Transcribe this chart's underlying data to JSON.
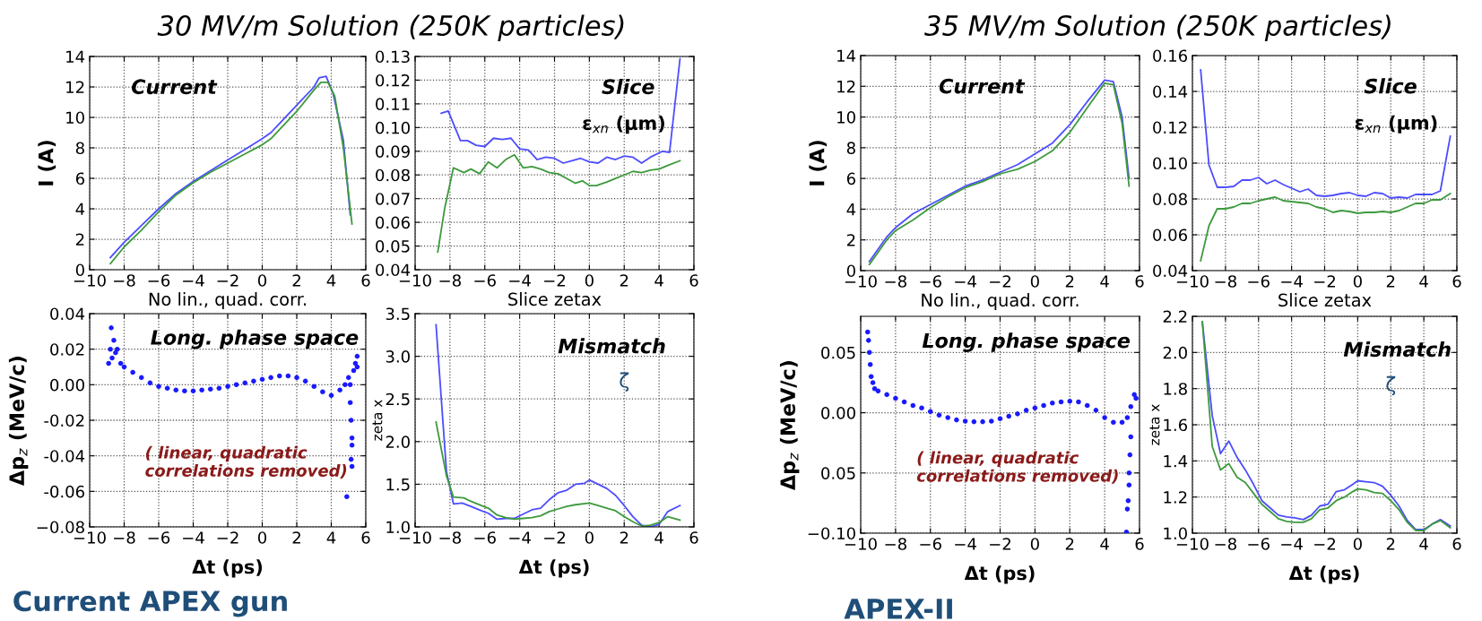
{
  "chart_data": [
    {
      "type": "line",
      "title": "30 MV/m Solution (250K particles)",
      "xlabel": "No lin., quad. corr.",
      "ylabel": "I (A)",
      "annotations": [
        "Current"
      ],
      "xlim": [
        -10,
        6
      ],
      "xticks": [
        {
          "value": -10,
          "label": "−10"
        },
        {
          "value": -8,
          "label": "−8"
        },
        {
          "value": -6,
          "label": "−6"
        },
        {
          "value": -4,
          "label": "−4"
        },
        {
          "value": -2,
          "label": "−2"
        },
        0,
        2,
        4,
        6
      ],
      "ylim": [
        0,
        14
      ],
      "yticks": [
        0,
        2,
        4,
        6,
        8,
        10,
        12,
        14
      ],
      "grid": true,
      "series": [
        {
          "color": "#4d4dff",
          "x": [
            -8.8,
            -8,
            -7,
            -6,
            -5,
            -4,
            -3,
            -2,
            -1,
            0,
            0.5,
            1,
            2,
            3,
            3.3,
            3.7,
            4.1,
            4.7,
            5.1
          ],
          "values": [
            0.8,
            1.8,
            2.9,
            4.0,
            5.0,
            5.8,
            6.5,
            7.2,
            7.9,
            8.6,
            9.0,
            9.6,
            10.8,
            12.0,
            12.6,
            12.7,
            11.6,
            8.5,
            3.6
          ]
        },
        {
          "color": "#3d9a3d",
          "x": [
            -8.8,
            -8,
            -7,
            -6,
            -5,
            -4,
            -3,
            -2,
            -1,
            0,
            0.5,
            1,
            2,
            3,
            3.4,
            3.8,
            4.2,
            4.7,
            5.2
          ],
          "values": [
            0.4,
            1.5,
            2.6,
            3.8,
            4.9,
            5.7,
            6.4,
            7.0,
            7.6,
            8.2,
            8.6,
            9.2,
            10.4,
            11.8,
            12.3,
            12.3,
            11.4,
            8.0,
            3.0
          ]
        }
      ]
    },
    {
      "type": "line",
      "xlabel": "Slice zetax",
      "annotations": [
        "Slice",
        "ε$_{xn}$ (µm)"
      ],
      "xlim": [
        -10,
        6
      ],
      "xticks": [
        {
          "value": -10,
          "label": "−10"
        },
        {
          "value": -8,
          "label": "−8"
        },
        {
          "value": -6,
          "label": "−6"
        },
        {
          "value": -4,
          "label": "−4"
        },
        {
          "value": -2,
          "label": "−2"
        },
        0,
        2,
        4,
        6
      ],
      "ylim": [
        0.04,
        0.13
      ],
      "yticks": [
        0.04,
        0.05,
        0.06,
        0.07,
        {
          "value": 0.08,
          "label": "0.08"
        },
        0.09,
        {
          "value": 0.1,
          "label": "0.10"
        },
        0.11,
        0.12,
        0.13
      ],
      "grid": true,
      "series": [
        {
          "color": "#4d4dff",
          "x": [
            -8.5,
            -8.1,
            -7.4,
            -7,
            -6.5,
            -6,
            -5.5,
            -5,
            -4.5,
            -4,
            -3.5,
            -3,
            -2.5,
            -2,
            -1.5,
            -1,
            -0.5,
            0,
            0.5,
            1,
            1.5,
            2,
            2.5,
            3,
            3.5,
            4.2,
            4.6,
            5.2
          ],
          "values": [
            0.106,
            0.107,
            0.0945,
            0.0945,
            0.0925,
            0.092,
            0.0955,
            0.095,
            0.0955,
            0.091,
            0.0905,
            0.0865,
            0.0875,
            0.087,
            0.085,
            0.086,
            0.087,
            0.0855,
            0.085,
            0.0875,
            0.0865,
            0.088,
            0.0875,
            0.085,
            0.0875,
            0.09,
            0.0895,
            0.129
          ]
        },
        {
          "color": "#3d9a3d",
          "x": [
            -8.7,
            -8.3,
            -7.8,
            -7.2,
            -6.8,
            -6.3,
            -5.8,
            -5.3,
            -4.8,
            -4.3,
            -3.8,
            -3.3,
            -2.8,
            -2.3,
            -1.8,
            -1.3,
            -0.8,
            -0.4,
            0,
            0.4,
            1,
            1.5,
            2,
            2.5,
            3,
            3.5,
            4,
            4.5,
            5.2
          ],
          "values": [
            0.0475,
            0.066,
            0.083,
            0.081,
            0.0825,
            0.0805,
            0.0855,
            0.083,
            0.0865,
            0.0885,
            0.083,
            0.0835,
            0.0825,
            0.081,
            0.0805,
            0.0785,
            0.0765,
            0.0775,
            0.0755,
            0.0755,
            0.077,
            0.0785,
            0.08,
            0.0815,
            0.081,
            0.082,
            0.0825,
            0.084,
            0.086
          ]
        }
      ]
    },
    {
      "type": "scatter",
      "xlabel": "Δt (ps)",
      "ylabel": "Δp$_{z}$ (MeV/c)",
      "annotations": [
        "Long. phase space",
        "( linear, quadratic\ncorrelations removed)",
        "Current APEX gun"
      ],
      "xlim": [
        -10,
        6
      ],
      "xticks": [
        {
          "value": -10,
          "label": "−10"
        },
        {
          "value": -8,
          "label": "−8"
        },
        {
          "value": -6,
          "label": "−6"
        },
        {
          "value": -4,
          "label": "−4"
        },
        {
          "value": -2,
          "label": "−2"
        },
        0,
        2,
        4,
        6
      ],
      "ylim": [
        -0.08,
        0.04
      ],
      "yticks": [
        {
          "value": -0.08,
          "label": "−0.08"
        },
        {
          "value": -0.06,
          "label": "-0.06"
        },
        {
          "value": -0.04,
          "label": "-0.04"
        },
        {
          "value": -0.02,
          "label": "-0.02"
        },
        {
          "value": 0,
          "label": "0.00"
        },
        0.02,
        0.04
      ],
      "grid": true,
      "marker": "circle",
      "series": [
        {
          "color": "#1a1aff",
          "x": [
            -8.9,
            -8.8,
            -8.75,
            -8.7,
            -8.6,
            -8.5,
            -8.4,
            -8.2,
            -8,
            -7.5,
            -7,
            -6.5,
            -6,
            -5.5,
            -5,
            -4.5,
            -4,
            -3.5,
            -3,
            -2.5,
            -2,
            -1.5,
            -1,
            -0.5,
            0,
            0.5,
            1,
            1.5,
            2,
            2.5,
            3,
            3.5,
            4,
            4.5,
            4.8,
            5.0,
            5.1,
            5.15,
            5.2,
            5.2,
            5.15,
            5.2,
            4.9,
            5.3,
            5.4,
            5.5,
            5.5,
            5.1
          ],
          "values": [
            0.012,
            0.02,
            0.032,
            0.015,
            0.025,
            0.018,
            0.02,
            0.012,
            0.01,
            0.007,
            0.004,
            0.001,
            -0.001,
            -0.002,
            -0.003,
            -0.0035,
            -0.0035,
            -0.003,
            -0.0025,
            -0.002,
            -0.001,
            0.0,
            0.001,
            0.002,
            0.003,
            0.004,
            0.005,
            0.005,
            0.004,
            0.002,
            -0.001,
            -0.004,
            -0.006,
            -0.003,
            0.0,
            0.004,
            -0.01,
            -0.02,
            -0.03,
            -0.034,
            -0.042,
            -0.046,
            -0.063,
            0.008,
            0.012,
            0.016,
            0.01,
            0.0
          ]
        }
      ]
    },
    {
      "type": "line",
      "xlabel": "Δt (ps)",
      "ylabel": "zeta x",
      "annotations": [
        "Mismatch",
        "ζ"
      ],
      "xlim": [
        -10,
        6
      ],
      "xticks": [
        {
          "value": -10,
          "label": "−10"
        },
        {
          "value": -8,
          "label": "−8"
        },
        {
          "value": -6,
          "label": "−6"
        },
        {
          "value": -4,
          "label": "−4"
        },
        {
          "value": -2,
          "label": "−2"
        },
        0,
        2,
        4,
        6
      ],
      "ylim": [
        1.0,
        3.5
      ],
      "yticks": [
        {
          "value": 1,
          "label": "1.0"
        },
        1.5,
        {
          "value": 2,
          "label": "2.0"
        },
        2.5,
        {
          "value": 3,
          "label": "3.0"
        },
        3.5
      ],
      "grid": true,
      "series": [
        {
          "color": "#4d4dff",
          "x": [
            -8.8,
            -8.2,
            -7.8,
            -7.3,
            -6.8,
            -6.2,
            -5.8,
            -5.3,
            -4.8,
            -4.3,
            -3.8,
            -3.3,
            -2.8,
            -2.3,
            -1.8,
            -1.3,
            -0.8,
            -0.3,
            0,
            0.5,
            1,
            1.5,
            2,
            2.5,
            3,
            3.5,
            4,
            4.5,
            5.2
          ],
          "values": [
            3.37,
            1.65,
            1.27,
            1.28,
            1.24,
            1.19,
            1.16,
            1.09,
            1.1,
            1.1,
            1.15,
            1.2,
            1.22,
            1.32,
            1.4,
            1.43,
            1.5,
            1.51,
            1.55,
            1.5,
            1.45,
            1.37,
            1.25,
            1.12,
            1.02,
            1.0,
            1.03,
            1.18,
            1.25
          ]
        },
        {
          "color": "#3d9a3d",
          "x": [
            -8.8,
            -8.2,
            -7.8,
            -7.2,
            -6.8,
            -6.2,
            -5.8,
            -5.3,
            -4.8,
            -4.3,
            -3.8,
            -3.3,
            -2.8,
            -2.3,
            -1.8,
            -1.3,
            -0.8,
            0,
            0.5,
            1,
            1.5,
            2,
            2.5,
            3,
            3.5,
            4,
            4.5,
            5.2
          ],
          "values": [
            2.23,
            1.6,
            1.35,
            1.34,
            1.3,
            1.25,
            1.22,
            1.14,
            1.11,
            1.09,
            1.1,
            1.11,
            1.13,
            1.18,
            1.21,
            1.24,
            1.26,
            1.28,
            1.25,
            1.22,
            1.19,
            1.12,
            1.06,
            1.01,
            1.02,
            1.05,
            1.12,
            1.08
          ]
        }
      ]
    },
    {
      "type": "line",
      "title": "35 MV/m Solution (250K particles)",
      "xlabel": "No lin., quad. corr.",
      "ylabel": "I (A)",
      "annotations": [
        "Current"
      ],
      "xlim": [
        -10,
        6
      ],
      "xticks": [
        {
          "value": -10,
          "label": "−10"
        },
        {
          "value": -8,
          "label": "−8"
        },
        {
          "value": -6,
          "label": "−6"
        },
        {
          "value": -4,
          "label": "−4"
        },
        {
          "value": -2,
          "label": "−2"
        },
        0,
        2,
        4,
        6
      ],
      "ylim": [
        0,
        14
      ],
      "yticks": [
        0,
        2,
        4,
        6,
        8,
        10,
        12,
        14
      ],
      "grid": true,
      "series": [
        {
          "color": "#4d4dff",
          "x": [
            -9.5,
            -9,
            -8.5,
            -8,
            -7,
            -6,
            -5,
            -4,
            -3,
            -2,
            -1,
            0,
            1,
            2,
            3,
            4,
            4.5,
            5,
            5.4
          ],
          "values": [
            0.6,
            1.4,
            2.2,
            2.8,
            3.7,
            4.3,
            4.9,
            5.5,
            5.9,
            6.4,
            6.9,
            7.6,
            8.3,
            9.5,
            11.0,
            12.4,
            12.3,
            10.0,
            6.0
          ]
        },
        {
          "color": "#3d9a3d",
          "x": [
            -9.5,
            -9,
            -8.5,
            -8,
            -7,
            -6,
            -5,
            -4,
            -3,
            -2,
            -1,
            0,
            1,
            2,
            3,
            4,
            4.5,
            5,
            5.4
          ],
          "values": [
            0.4,
            1.2,
            2.0,
            2.6,
            3.3,
            4.1,
            4.8,
            5.4,
            5.8,
            6.3,
            6.6,
            7.1,
            7.8,
            9.0,
            10.6,
            12.2,
            12.1,
            9.6,
            5.5
          ]
        }
      ]
    },
    {
      "type": "line",
      "xlabel": "Slice zetax",
      "annotations": [
        "Slice",
        "ε$_{xn}$ (µm)"
      ],
      "xlim": [
        -10,
        6
      ],
      "xticks": [
        {
          "value": -10,
          "label": "−10"
        },
        {
          "value": -8,
          "label": "−8"
        },
        {
          "value": -6,
          "label": "−6"
        },
        {
          "value": -4,
          "label": "−4"
        },
        {
          "value": -2,
          "label": "−2"
        },
        0,
        2,
        4,
        6
      ],
      "ylim": [
        0.04,
        0.16
      ],
      "yticks": [
        0.04,
        0.06,
        {
          "value": 0.08,
          "label": "0.08"
        },
        {
          "value": 0.1,
          "label": "0.10"
        },
        0.12,
        0.14,
        0.16
      ],
      "grid": true,
      "series": [
        {
          "color": "#4d4dff",
          "x": [
            -9.5,
            -9,
            -8.5,
            -8,
            -7.5,
            -7,
            -6.5,
            -6,
            -5.5,
            -5,
            -4.5,
            -4,
            -3.5,
            -3,
            -2.5,
            -2,
            -1.5,
            -1,
            -0.5,
            0,
            0.5,
            1,
            1.5,
            2,
            2.5,
            3,
            3.5,
            4,
            4.5,
            5,
            5.6
          ],
          "values": [
            0.152,
            0.099,
            0.0865,
            0.0865,
            0.087,
            0.0905,
            0.0905,
            0.092,
            0.0885,
            0.0905,
            0.088,
            0.086,
            0.084,
            0.0855,
            0.082,
            0.0815,
            0.082,
            0.083,
            0.0835,
            0.082,
            0.0815,
            0.0835,
            0.083,
            0.0805,
            0.081,
            0.0805,
            0.0825,
            0.0825,
            0.0825,
            0.0845,
            0.115
          ]
        },
        {
          "color": "#3d9a3d",
          "x": [
            -9.5,
            -9,
            -8.5,
            -8,
            -7.5,
            -7,
            -6.5,
            -6,
            -5.5,
            -5,
            -4.5,
            -4,
            -3.5,
            -3,
            -2.5,
            -2,
            -1.5,
            -1,
            -0.5,
            0,
            0.5,
            1,
            1.5,
            2,
            2.5,
            3,
            3.5,
            4,
            4.5,
            5,
            5.6
          ],
          "values": [
            0.0455,
            0.065,
            0.0745,
            0.0745,
            0.0755,
            0.0775,
            0.0775,
            0.079,
            0.08,
            0.081,
            0.079,
            0.0785,
            0.078,
            0.0775,
            0.0755,
            0.0745,
            0.0725,
            0.0735,
            0.073,
            0.072,
            0.0725,
            0.0725,
            0.073,
            0.0725,
            0.0735,
            0.0755,
            0.0775,
            0.0775,
            0.0795,
            0.0795,
            0.083
          ]
        }
      ]
    },
    {
      "type": "scatter",
      "xlabel": "Δt (ps)",
      "ylabel": "Δp$_{z}$ (MeV/c)",
      "annotations": [
        "Long. phase space",
        "( linear, quadratic\ncorrelations removed)",
        "APEX-II"
      ],
      "xlim": [
        -10,
        6
      ],
      "xticks": [
        {
          "value": -10,
          "label": "−10"
        },
        {
          "value": -8,
          "label": "−8"
        },
        {
          "value": -6,
          "label": "−6"
        },
        {
          "value": -4,
          "label": "−4"
        },
        {
          "value": -2,
          "label": "−2"
        },
        0,
        2,
        4,
        6
      ],
      "ylim": [
        -0.1,
        0.08
      ],
      "yticks": [
        {
          "value": -0.1,
          "label": "−0.10"
        },
        {
          "value": -0.05,
          "label": "0.05"
        },
        {
          "value": 0,
          "label": "0.00"
        },
        0.05
      ],
      "grid": true,
      "marker": "circle",
      "series": [
        {
          "color": "#1a1aff",
          "x": [
            -9.6,
            -9.55,
            -9.5,
            -9.45,
            -9.4,
            -9.3,
            -9.2,
            -9,
            -8.5,
            -8,
            -7.5,
            -7,
            -6.5,
            -6,
            -5.5,
            -5,
            -4.5,
            -4,
            -3.5,
            -3,
            -2.5,
            -2,
            -1.5,
            -1,
            -0.5,
            0,
            0.5,
            1,
            1.5,
            2,
            2.5,
            3,
            3.5,
            4,
            4.5,
            5,
            5.3,
            5.5,
            5.7,
            5.8,
            5.5,
            5.45,
            5.4,
            5.4,
            5.35,
            5.3,
            5.25
          ],
          "values": [
            0.067,
            0.06,
            0.05,
            0.04,
            0.03,
            0.025,
            0.02,
            0.018,
            0.015,
            0.012,
            0.009,
            0.006,
            0.004,
            0.001,
            -0.002,
            -0.004,
            -0.006,
            -0.007,
            -0.0075,
            -0.0075,
            -0.007,
            -0.005,
            -0.003,
            -0.001,
            0.002,
            0.004,
            0.006,
            0.008,
            0.009,
            0.0095,
            0.009,
            0.006,
            0.002,
            -0.004,
            -0.008,
            -0.008,
            -0.004,
            0.005,
            0.015,
            0.012,
            -0.02,
            -0.035,
            -0.05,
            -0.06,
            -0.073,
            -0.08,
            -0.099
          ]
        }
      ]
    },
    {
      "type": "line",
      "xlabel": "Δt (ps)",
      "ylabel": "zeta x",
      "annotations": [
        "Mismatch",
        "ζ"
      ],
      "xlim": [
        -10,
        6
      ],
      "xticks": [
        {
          "value": -10,
          "label": "−10"
        },
        {
          "value": -8,
          "label": "−8"
        },
        {
          "value": -6,
          "label": "−6"
        },
        {
          "value": -4,
          "label": "−4"
        },
        {
          "value": -2,
          "label": "−2"
        },
        0,
        2,
        4,
        6
      ],
      "ylim": [
        1.0,
        2.2
      ],
      "yticks": [
        {
          "value": 1,
          "label": "1.0"
        },
        1.2,
        1.4,
        1.6,
        1.8,
        {
          "value": 2,
          "label": "2.0"
        },
        2.2
      ],
      "grid": true,
      "series": [
        {
          "color": "#4d4dff",
          "x": [
            -9.4,
            -8.8,
            -8.3,
            -7.8,
            -7.3,
            -6.8,
            -6.3,
            -5.8,
            -5.3,
            -4.8,
            -4.3,
            -3.8,
            -3.3,
            -2.8,
            -2.3,
            -1.8,
            -1.3,
            -0.8,
            -0.3,
            0,
            0.5,
            1,
            1.5,
            2,
            2.5,
            3,
            3.5,
            4,
            4.5,
            5,
            5.6
          ],
          "values": [
            2.17,
            1.65,
            1.44,
            1.51,
            1.42,
            1.35,
            1.27,
            1.18,
            1.14,
            1.1,
            1.09,
            1.085,
            1.075,
            1.1,
            1.15,
            1.16,
            1.23,
            1.24,
            1.27,
            1.29,
            1.285,
            1.28,
            1.26,
            1.21,
            1.15,
            1.07,
            1.02,
            1.02,
            1.05,
            1.075,
            1.04
          ]
        },
        {
          "color": "#3d9a3d",
          "x": [
            -9.4,
            -8.8,
            -8.3,
            -7.8,
            -7.3,
            -6.8,
            -6.3,
            -5.8,
            -5.3,
            -4.8,
            -4.3,
            -3.8,
            -3.3,
            -2.8,
            -2.3,
            -1.8,
            -1.3,
            -0.8,
            -0.3,
            0,
            0.5,
            1,
            1.5,
            2,
            2.5,
            3,
            3.5,
            4,
            4.5,
            5,
            5.6
          ],
          "values": [
            2.17,
            1.48,
            1.35,
            1.385,
            1.31,
            1.28,
            1.22,
            1.16,
            1.12,
            1.08,
            1.065,
            1.06,
            1.06,
            1.08,
            1.13,
            1.14,
            1.18,
            1.2,
            1.23,
            1.245,
            1.24,
            1.225,
            1.22,
            1.18,
            1.13,
            1.06,
            1.015,
            1.015,
            1.05,
            1.07,
            1.03
          ]
        }
      ]
    }
  ]
}
